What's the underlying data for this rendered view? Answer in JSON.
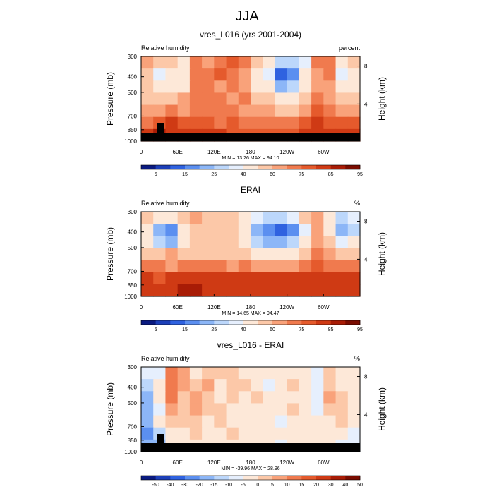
{
  "title": "JJA",
  "chart_data": [
    {
      "type": "heatmap",
      "title": "vres_L016 (yrs 2001-2004)",
      "left_label": "Relative humidity",
      "right_label": "percent",
      "xlabel": "",
      "ylabel": "Pressure (mb)",
      "y2label": "Height (km)",
      "x_ticks": [
        "0",
        "60E",
        "120E",
        "180",
        "120W",
        "60W"
      ],
      "y_ticks": [
        "300",
        "400",
        "500",
        "700",
        "850",
        "1000"
      ],
      "y2_ticks": [
        "8",
        "4"
      ],
      "ylim": [
        1000,
        300
      ],
      "stats": "MIN = 13.26  MAX = 94.10",
      "colorbar_labels": [
        "5",
        "15",
        "25",
        "40",
        "60",
        "75",
        "85",
        "95"
      ],
      "colors": [
        "#0a1a80",
        "#1c3fb8",
        "#2f62e0",
        "#5b8ff0",
        "#8cb6f7",
        "#bcd7fb",
        "#e6effd",
        "#fde8d8",
        "#fcc8a8",
        "#f9a27a",
        "#f07a4e",
        "#e55a2c",
        "#cf3a14",
        "#a81c06",
        "#7a0c00"
      ],
      "levels_grid": [
        [
          9,
          8,
          8,
          7,
          10,
          9,
          10,
          11,
          10,
          8,
          7,
          5,
          5,
          6,
          10,
          10,
          7,
          8
        ],
        [
          8,
          6,
          7,
          7,
          10,
          10,
          11,
          10,
          9,
          7,
          6,
          2,
          3,
          7,
          9,
          10,
          6,
          7
        ],
        [
          8,
          7,
          7,
          7,
          10,
          10,
          9,
          10,
          9,
          7,
          7,
          4,
          5,
          7,
          9,
          9,
          7,
          7
        ],
        [
          8,
          8,
          8,
          9,
          10,
          10,
          10,
          9,
          10,
          8,
          8,
          7,
          7,
          8,
          10,
          9,
          8,
          8
        ],
        [
          9,
          9,
          10,
          9,
          10,
          10,
          10,
          10,
          9,
          9,
          9,
          8,
          8,
          9,
          11,
          10,
          9,
          9
        ],
        [
          10,
          11,
          12,
          11,
          11,
          11,
          10,
          11,
          10,
          10,
          10,
          10,
          10,
          11,
          12,
          11,
          11,
          11
        ],
        [
          12,
          13,
          12,
          12,
          12,
          12,
          12,
          11,
          11,
          11,
          11,
          11,
          11,
          12,
          12,
          12,
          12,
          12
        ]
      ],
      "topography": true
    },
    {
      "type": "heatmap",
      "title": "ERAI",
      "left_label": "Relative humidity",
      "right_label": "%",
      "xlabel": "",
      "ylabel": "Pressure (mb)",
      "y2label": "Height (km)",
      "x_ticks": [
        "0",
        "60E",
        "120E",
        "180",
        "120W",
        "60W"
      ],
      "y_ticks": [
        "300",
        "400",
        "500",
        "700",
        "850",
        "1000"
      ],
      "y2_ticks": [
        "8",
        "4"
      ],
      "ylim": [
        1000,
        300
      ],
      "stats": "MIN = 14.65  MAX = 94.47",
      "colorbar_labels": [
        "5",
        "15",
        "25",
        "40",
        "60",
        "75",
        "85",
        "95"
      ],
      "colors": [
        "#0a1a80",
        "#1c3fb8",
        "#2f62e0",
        "#5b8ff0",
        "#8cb6f7",
        "#bcd7fb",
        "#e6effd",
        "#fde8d8",
        "#fcc8a8",
        "#f9a27a",
        "#f07a4e",
        "#e55a2c",
        "#cf3a14",
        "#a81c06",
        "#7a0c00"
      ],
      "levels_grid": [
        [
          8,
          7,
          7,
          8,
          9,
          8,
          8,
          8,
          7,
          6,
          5,
          5,
          6,
          8,
          9,
          7,
          5,
          6
        ],
        [
          7,
          4,
          3,
          7,
          8,
          8,
          8,
          8,
          7,
          4,
          3,
          2,
          3,
          6,
          9,
          7,
          4,
          5
        ],
        [
          7,
          5,
          4,
          7,
          8,
          8,
          8,
          8,
          7,
          5,
          4,
          4,
          5,
          7,
          9,
          8,
          6,
          7
        ],
        [
          8,
          8,
          9,
          8,
          8,
          8,
          8,
          8,
          8,
          7,
          7,
          7,
          7,
          8,
          10,
          9,
          8,
          8
        ],
        [
          10,
          10,
          9,
          10,
          10,
          10,
          10,
          9,
          10,
          9,
          9,
          9,
          9,
          10,
          11,
          10,
          10,
          10
        ],
        [
          12,
          11,
          12,
          12,
          12,
          12,
          12,
          12,
          12,
          12,
          12,
          12,
          12,
          12,
          12,
          12,
          12,
          12
        ],
        [
          12,
          12,
          12,
          13,
          13,
          12,
          12,
          12,
          12,
          12,
          12,
          12,
          12,
          12,
          12,
          12,
          12,
          12
        ]
      ],
      "topography": false
    },
    {
      "type": "heatmap",
      "title": "vres_L016 - ERAI",
      "left_label": "Relative humidity",
      "right_label": "%",
      "xlabel": "",
      "ylabel": "Pressure (mb)",
      "y2label": "Height (km)",
      "x_ticks": [
        "0",
        "60E",
        "120E",
        "180",
        "120W",
        "60W"
      ],
      "y_ticks": [
        "300",
        "400",
        "500",
        "700",
        "850",
        "1000"
      ],
      "y2_ticks": [
        "8",
        "4"
      ],
      "ylim": [
        1000,
        300
      ],
      "stats": "MIN = -39.96  MAX = 28.96",
      "colorbar_labels": [
        "-50",
        "-40",
        "-30",
        "-20",
        "-15",
        "-10",
        "-5",
        "0",
        "5",
        "10",
        "15",
        "20",
        "30",
        "40",
        "50"
      ],
      "colors": [
        "#0a1a80",
        "#1c3fb8",
        "#2f62e0",
        "#5b8ff0",
        "#8cb6f7",
        "#bcd7fb",
        "#e6effd",
        "#fde8d8",
        "#fcc8a8",
        "#f9a27a",
        "#f07a4e",
        "#e55a2c",
        "#cf3a14",
        "#a81c06",
        "#7a0c00"
      ],
      "levels_grid": [
        [
          6,
          6,
          10,
          9,
          7,
          8,
          8,
          8,
          7,
          7,
          7,
          7,
          7,
          7,
          6,
          8,
          7,
          7
        ],
        [
          5,
          7,
          10,
          9,
          8,
          9,
          7,
          8,
          8,
          7,
          6,
          7,
          8,
          7,
          6,
          8,
          7,
          7
        ],
        [
          4,
          7,
          10,
          8,
          9,
          8,
          7,
          8,
          7,
          8,
          7,
          7,
          7,
          7,
          6,
          9,
          8,
          7
        ],
        [
          4,
          6,
          9,
          8,
          9,
          8,
          8,
          7,
          7,
          7,
          7,
          7,
          8,
          7,
          6,
          8,
          8,
          7
        ],
        [
          4,
          7,
          8,
          8,
          8,
          7,
          8,
          7,
          7,
          7,
          7,
          6,
          7,
          7,
          7,
          7,
          8,
          7
        ],
        [
          3,
          5,
          7,
          7,
          8,
          7,
          7,
          8,
          7,
          7,
          7,
          7,
          7,
          7,
          7,
          7,
          7,
          6
        ],
        [
          4,
          4,
          7,
          7,
          7,
          7,
          7,
          7,
          7,
          7,
          7,
          6,
          7,
          7,
          7,
          7,
          6,
          6
        ]
      ],
      "topography": true
    }
  ]
}
